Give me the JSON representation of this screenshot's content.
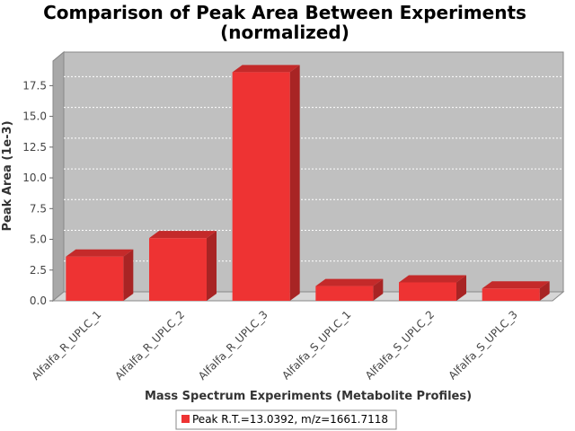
{
  "chart_data": {
    "type": "bar",
    "title": "Comparison of Peak Area Between Experiments",
    "subtitle": "(normalized)",
    "xlabel": "Mass Spectrum Experiments (Metabolite Profiles)",
    "ylabel": "Peak Area (1e-3)",
    "categories": [
      "Alfalfa_R_UPLC_1",
      "Alfalfa_R_UPLC_2",
      "Alfalfa_R_UPLC_3",
      "Alfalfa_S_UPLC_1",
      "Alfalfa_S_UPLC_2",
      "Alfalfa_S_UPLC_3"
    ],
    "series": [
      {
        "name": "Peak R.T.=13.0392, m/z=1661.7118",
        "values": [
          3.6,
          5.1,
          18.6,
          1.2,
          1.5,
          1.0
        ],
        "color": "#ee3333"
      }
    ],
    "ylim": [
      0,
      19.5
    ],
    "yticks": [
      "0.0",
      "2.5",
      "5.0",
      "7.5",
      "10.0",
      "12.5",
      "15.0",
      "17.5"
    ],
    "grid": true,
    "legend_position": "bottom",
    "plot_background": "#c0c0c0"
  }
}
